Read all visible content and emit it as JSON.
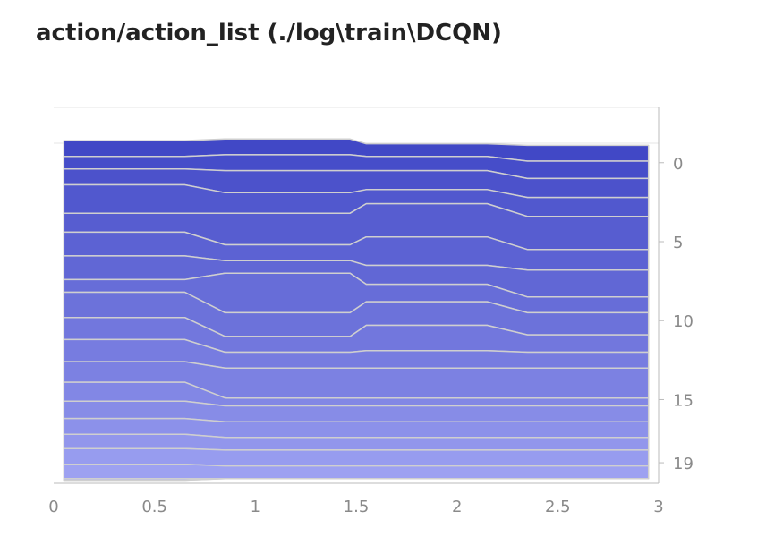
{
  "title": "action/action_list (./log\\train\\DCQN)",
  "chart_data": {
    "type": "area",
    "subtype": "distribution",
    "title": "action/action_list (./log\\train\\DCQN)",
    "xlabel": "",
    "ylabel": "",
    "xlim": [
      0,
      3
    ],
    "ylim": [
      20.3,
      -3.5
    ],
    "x_ticks": [
      0,
      0.5,
      1,
      1.5,
      2,
      2.5,
      3
    ],
    "x_tick_labels": [
      "0",
      "0.5",
      "1",
      "1.5",
      "2",
      "2.5",
      "3"
    ],
    "y_ticks": [
      0,
      5,
      10,
      15,
      19
    ],
    "y_tick_labels": [
      "0",
      "5",
      "10",
      "15",
      "19"
    ],
    "grid": "horizontal",
    "fill_top": "#4148c6",
    "fill_bottom": "#a2a6f4",
    "band_outline": "#cfcfcf",
    "x": [
      0.05,
      0.65,
      0.85,
      1.47,
      1.55,
      2.15,
      2.35,
      2.95
    ],
    "series": [
      {
        "values": [
          -1.4,
          -1.4,
          -1.5,
          -1.5,
          -1.2,
          -1.2,
          -1.1,
          -1.1
        ]
      },
      {
        "values": [
          -0.4,
          -0.4,
          -0.5,
          -0.5,
          -0.4,
          -0.4,
          -0.1,
          -0.1
        ]
      },
      {
        "values": [
          0.4,
          0.4,
          0.5,
          0.5,
          0.5,
          0.5,
          1.0,
          1.0
        ]
      },
      {
        "values": [
          1.4,
          1.4,
          1.9,
          1.9,
          1.7,
          1.7,
          2.2,
          2.2
        ]
      },
      {
        "values": [
          3.2,
          3.2,
          3.2,
          3.2,
          2.6,
          2.6,
          3.4,
          3.4
        ]
      },
      {
        "values": [
          4.4,
          4.4,
          5.2,
          5.2,
          4.7,
          4.7,
          5.5,
          5.5
        ]
      },
      {
        "values": [
          5.9,
          5.9,
          6.2,
          6.2,
          6.5,
          6.5,
          6.8,
          6.8
        ]
      },
      {
        "values": [
          7.4,
          7.4,
          7.0,
          7.0,
          7.7,
          7.7,
          8.5,
          8.5
        ]
      },
      {
        "values": [
          8.2,
          8.2,
          9.5,
          9.5,
          8.8,
          8.8,
          9.5,
          9.5
        ]
      },
      {
        "values": [
          9.8,
          9.8,
          11.0,
          11.0,
          10.3,
          10.3,
          10.9,
          10.9
        ]
      },
      {
        "values": [
          11.2,
          11.2,
          12.0,
          12.0,
          11.9,
          11.9,
          12.0,
          12.0
        ]
      },
      {
        "values": [
          12.6,
          12.6,
          13.0,
          13.0,
          13.0,
          13.0,
          13.0,
          13.0
        ]
      },
      {
        "values": [
          13.9,
          13.9,
          14.9,
          14.9,
          14.9,
          14.9,
          14.9,
          14.9
        ]
      },
      {
        "values": [
          15.1,
          15.1,
          15.4,
          15.4,
          15.4,
          15.4,
          15.4,
          15.4
        ]
      },
      {
        "values": [
          16.2,
          16.2,
          16.4,
          16.4,
          16.4,
          16.4,
          16.4,
          16.4
        ]
      },
      {
        "values": [
          17.2,
          17.2,
          17.4,
          17.4,
          17.4,
          17.4,
          17.4,
          17.4
        ]
      },
      {
        "values": [
          18.1,
          18.1,
          18.2,
          18.2,
          18.2,
          18.2,
          18.2,
          18.2
        ]
      },
      {
        "values": [
          19.1,
          19.1,
          19.2,
          19.2,
          19.2,
          19.2,
          19.2,
          19.2
        ]
      },
      {
        "values": [
          20.1,
          20.1,
          20.0,
          20.0,
          20.0,
          20.0,
          20.0,
          20.0
        ]
      }
    ]
  }
}
